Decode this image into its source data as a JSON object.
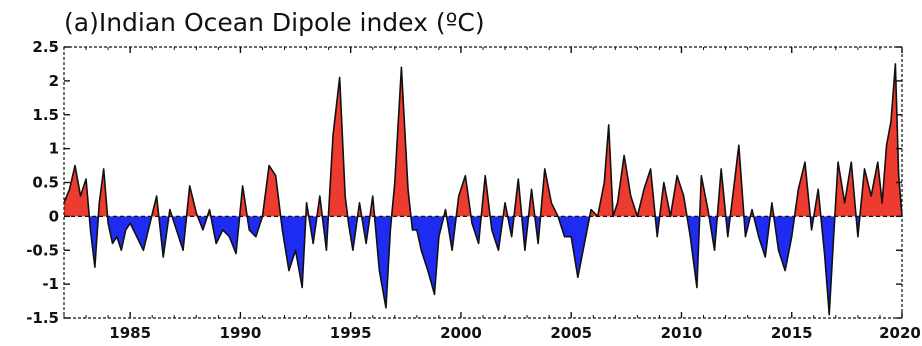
{
  "chart_data": {
    "type": "area",
    "title": "(a)Indian Ocean Dipole index (ºC)",
    "xlabel": "",
    "ylabel": "",
    "xlim": [
      1982,
      2020
    ],
    "ylim": [
      -1.5,
      2.5
    ],
    "x_ticks": [
      1985,
      1990,
      1995,
      2000,
      2005,
      2010,
      2015,
      2020
    ],
    "y_ticks": [
      -1.5,
      -1,
      -0.5,
      0,
      0.5,
      1,
      1.5,
      2,
      2.5
    ],
    "y_tick_labels": [
      "-1.5",
      "-1",
      "-0.5",
      "0",
      "0.5",
      "1",
      "1.5",
      "2",
      "2.5"
    ],
    "grid": false,
    "reference_line": 0,
    "colors": {
      "positive": "#ee3b2f",
      "negative": "#1d2cf0",
      "line": "#111111"
    },
    "series": [
      {
        "x": [
          1982.0,
          1982.25,
          1982.5,
          1982.75,
          1983.0,
          1983.2,
          1983.4,
          1983.6,
          1983.8,
          1984.0,
          1984.2,
          1984.4,
          1984.6,
          1984.8,
          1985.0,
          1985.3,
          1985.6,
          1985.9,
          1986.2,
          1986.5,
          1986.8,
          1987.1,
          1987.4,
          1987.7,
          1988.0,
          1988.3,
          1988.6,
          1988.9,
          1989.2,
          1989.5,
          1989.8,
          1990.1,
          1990.4,
          1990.7,
          1991.0,
          1991.3,
          1991.6,
          1991.9,
          1992.2,
          1992.5,
          1992.8,
          1993.0,
          1993.3,
          1993.6,
          1993.9,
          1994.2,
          1994.5,
          1994.75,
          1994.9,
          1995.1,
          1995.4,
          1995.7,
          1996.0,
          1996.3,
          1996.6,
          1996.8,
          1997.0,
          1997.3,
          1997.6,
          1997.8,
          1998.0,
          1998.2,
          1998.5,
          1998.8,
          1999.0,
          1999.3,
          1999.6,
          1999.9,
          2000.2,
          2000.5,
          2000.8,
          2001.1,
          2001.4,
          2001.7,
          2002.0,
          2002.3,
          2002.6,
          2002.9,
          2003.2,
          2003.5,
          2003.8,
          2004.1,
          2004.4,
          2004.7,
          2005.0,
          2005.3,
          2005.6,
          2005.9,
          2006.2,
          2006.5,
          2006.7,
          2006.9,
          2007.1,
          2007.4,
          2007.7,
          2008.0,
          2008.3,
          2008.6,
          2008.9,
          2009.2,
          2009.5,
          2009.8,
          2010.1,
          2010.4,
          2010.7,
          2010.9,
          2011.2,
          2011.5,
          2011.8,
          2012.1,
          2012.4,
          2012.6,
          2012.9,
          2013.2,
          2013.5,
          2013.8,
          2014.1,
          2014.4,
          2014.7,
          2015.0,
          2015.3,
          2015.6,
          2015.9,
          2016.2,
          2016.5,
          2016.7,
          2016.9,
          2017.1,
          2017.4,
          2017.7,
          2018.0,
          2018.3,
          2018.6,
          2018.9,
          2019.1,
          2019.3,
          2019.5,
          2019.7,
          2019.85,
          2020.0
        ],
        "y": [
          0.2,
          0.4,
          0.75,
          0.3,
          0.55,
          -0.2,
          -0.75,
          0.2,
          0.7,
          -0.1,
          -0.4,
          -0.3,
          -0.5,
          -0.2,
          -0.1,
          -0.3,
          -0.5,
          -0.1,
          0.3,
          -0.6,
          0.1,
          -0.2,
          -0.5,
          0.45,
          0.05,
          -0.2,
          0.1,
          -0.4,
          -0.2,
          -0.3,
          -0.55,
          0.45,
          -0.2,
          -0.3,
          0.0,
          0.75,
          0.6,
          -0.2,
          -0.8,
          -0.5,
          -1.05,
          0.2,
          -0.4,
          0.3,
          -0.5,
          1.2,
          2.05,
          0.3,
          -0.1,
          -0.5,
          0.2,
          -0.4,
          0.3,
          -0.8,
          -1.35,
          -0.2,
          0.5,
          2.2,
          0.4,
          -0.2,
          -0.2,
          -0.5,
          -0.8,
          -1.15,
          -0.3,
          0.1,
          -0.5,
          0.3,
          0.6,
          -0.1,
          -0.4,
          0.6,
          -0.2,
          -0.5,
          0.2,
          -0.3,
          0.55,
          -0.5,
          0.4,
          -0.4,
          0.7,
          0.2,
          0.0,
          -0.3,
          -0.3,
          -0.9,
          -0.4,
          0.1,
          0.0,
          0.5,
          1.35,
          0.0,
          0.2,
          0.9,
          0.3,
          0.0,
          0.4,
          0.7,
          -0.3,
          0.5,
          0.0,
          0.6,
          0.3,
          -0.3,
          -1.05,
          0.6,
          0.1,
          -0.5,
          0.7,
          -0.3,
          0.5,
          1.05,
          -0.3,
          0.1,
          -0.3,
          -0.6,
          0.2,
          -0.5,
          -0.8,
          -0.3,
          0.4,
          0.8,
          -0.2,
          0.4,
          -0.6,
          -1.45,
          -0.3,
          0.8,
          0.2,
          0.8,
          -0.3,
          0.7,
          0.3,
          0.8,
          0.2,
          1.05,
          1.4,
          2.25,
          0.6,
          0.0
        ]
      }
    ]
  }
}
